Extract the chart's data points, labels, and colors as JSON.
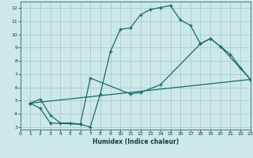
{
  "xlabel": "Humidex (Indice chaleur)",
  "xlim": [
    0,
    23
  ],
  "ylim": [
    2.8,
    12.5
  ],
  "xticks": [
    0,
    1,
    2,
    3,
    4,
    5,
    6,
    7,
    8,
    9,
    10,
    11,
    12,
    13,
    14,
    15,
    16,
    17,
    18,
    19,
    20,
    21,
    22,
    23
  ],
  "yticks": [
    3,
    4,
    5,
    6,
    7,
    8,
    9,
    10,
    11,
    12
  ],
  "background_color": "#cce8e8",
  "grid_color": "#aacccc",
  "line_color": "#1a6b6b",
  "line1_x": [
    1,
    2,
    3,
    4,
    5,
    6,
    7,
    8,
    9,
    10,
    11,
    12,
    13,
    14,
    15,
    16,
    17,
    18,
    19,
    20,
    21,
    22,
    23
  ],
  "line1_y": [
    4.8,
    5.1,
    3.9,
    3.3,
    3.3,
    3.2,
    3.0,
    5.5,
    8.7,
    10.4,
    10.5,
    11.5,
    11.9,
    12.05,
    12.2,
    11.1,
    10.7,
    9.3,
    9.7,
    9.1,
    8.5,
    7.5,
    6.6
  ],
  "line2_x": [
    1,
    2,
    3,
    6,
    7,
    11,
    12,
    14,
    18,
    19,
    20,
    23
  ],
  "line2_y": [
    4.8,
    4.4,
    3.3,
    3.2,
    6.7,
    5.5,
    5.6,
    6.2,
    9.3,
    9.7,
    9.1,
    6.6
  ],
  "line3_x": [
    1,
    23
  ],
  "line3_y": [
    4.8,
    6.6
  ]
}
